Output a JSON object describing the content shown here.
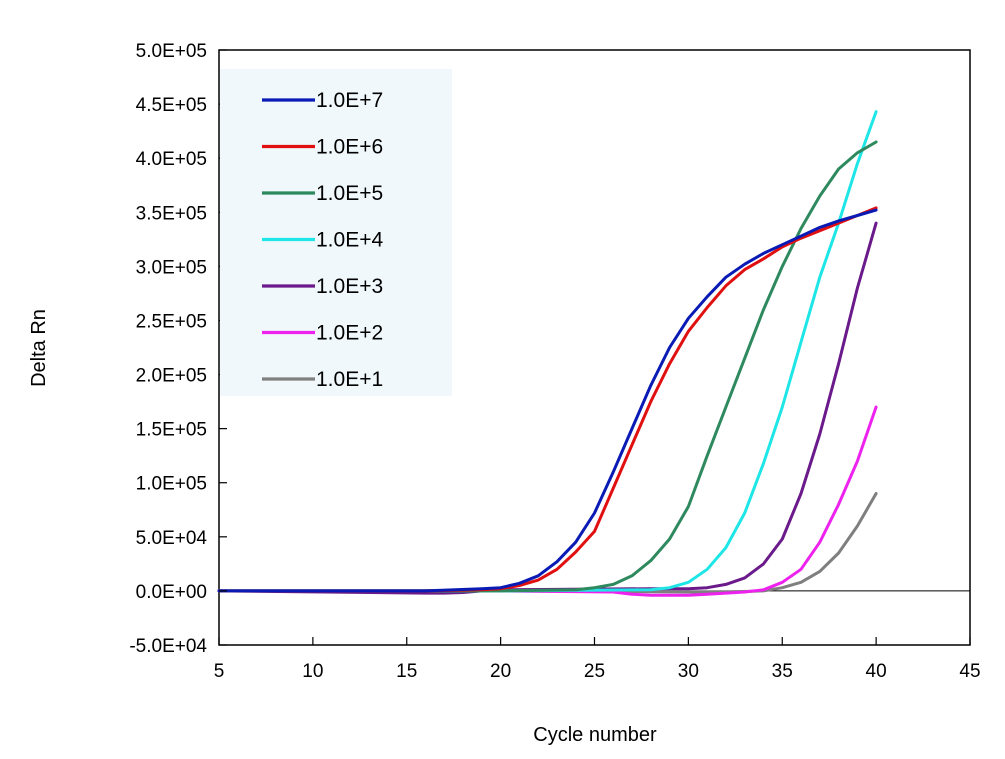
{
  "chart_data": {
    "type": "line",
    "title": "",
    "xlabel": "Cycle number",
    "ylabel": "Delta Rn",
    "xlim": [
      5,
      45
    ],
    "ylim": [
      -50000,
      500000
    ],
    "x_ticks": [
      5,
      10,
      15,
      20,
      25,
      30,
      35,
      40,
      45
    ],
    "x_tick_labels": [
      "5",
      "10",
      "15",
      "20",
      "25",
      "30",
      "35",
      "40",
      "45"
    ],
    "y_ticks": [
      -50000,
      0,
      50000,
      100000,
      150000,
      200000,
      250000,
      300000,
      350000,
      400000,
      450000,
      500000
    ],
    "y_tick_labels": [
      "-5.0E+04",
      "0.0E+00",
      "5.0E+04",
      "1.0E+05",
      "1.5E+05",
      "2.0E+05",
      "2.5E+05",
      "3.0E+05",
      "3.5E+05",
      "4.0E+05",
      "4.5E+05",
      "5.0E+05"
    ],
    "grid": false,
    "legend_position": "top-left",
    "legend_background": "#f0f8fb",
    "series": [
      {
        "name": "1.0E+7",
        "color": "#0a1ab4",
        "x": [
          5,
          16,
          19,
          20,
          21,
          22,
          23,
          24,
          25,
          26,
          27,
          28,
          29,
          30,
          31,
          32,
          33,
          34,
          35,
          36,
          37,
          38,
          39,
          40
        ],
        "y": [
          0,
          0,
          2000,
          3000,
          7000,
          14000,
          27000,
          45000,
          72000,
          110000,
          150000,
          190000,
          225000,
          252000,
          272000,
          290000,
          302000,
          312000,
          320000,
          328000,
          336000,
          342000,
          347000,
          352000
        ]
      },
      {
        "name": "1.0E+6",
        "color": "#e01010",
        "x": [
          5,
          16,
          19,
          20,
          21,
          22,
          23,
          24,
          25,
          26,
          27,
          28,
          29,
          30,
          31,
          32,
          33,
          34,
          35,
          36,
          37,
          38,
          39,
          40
        ],
        "y": [
          0,
          0,
          1000,
          2000,
          5000,
          10000,
          20000,
          36000,
          55000,
          95000,
          135000,
          175000,
          210000,
          240000,
          262000,
          282000,
          297000,
          307000,
          318000,
          326000,
          333000,
          340000,
          347000,
          354000
        ]
      },
      {
        "name": "1.0E+5",
        "color": "#2e8a5e",
        "x": [
          5,
          20,
          24,
          25,
          26,
          27,
          28,
          29,
          30,
          31,
          32,
          33,
          34,
          35,
          36,
          37,
          38,
          39,
          40
        ],
        "y": [
          0,
          0,
          1000,
          3000,
          6000,
          14000,
          28000,
          48000,
          78000,
          125000,
          170000,
          215000,
          260000,
          300000,
          335000,
          365000,
          390000,
          405000,
          415000
        ]
      },
      {
        "name": "1.0E+4",
        "color": "#1ee6e6",
        "x": [
          5,
          20,
          28,
          29,
          30,
          31,
          32,
          33,
          34,
          35,
          36,
          37,
          38,
          39,
          40
        ],
        "y": [
          0,
          0,
          1000,
          3000,
          8000,
          20000,
          40000,
          72000,
          118000,
          170000,
          230000,
          290000,
          340000,
          395000,
          443000
        ]
      },
      {
        "name": "1.0E+3",
        "color": "#6a1a8a",
        "x": [
          5,
          16,
          17,
          18,
          19,
          20,
          28,
          30,
          31,
          32,
          33,
          34,
          35,
          36,
          37,
          38,
          39,
          40
        ],
        "y": [
          0,
          -2000,
          -2000,
          -1500,
          0,
          1000,
          2000,
          2000,
          3000,
          6000,
          12000,
          25000,
          48000,
          90000,
          145000,
          210000,
          280000,
          340000
        ]
      },
      {
        "name": "1.0E+2",
        "color": "#ee22ee",
        "x": [
          5,
          20,
          26,
          27,
          28,
          29,
          30,
          31,
          32,
          33,
          34,
          35,
          36,
          37,
          38,
          39,
          40
        ],
        "y": [
          0,
          0,
          -1000,
          -3000,
          -4000,
          -4000,
          -4000,
          -3000,
          -2000,
          -1000,
          1000,
          8000,
          20000,
          45000,
          80000,
          120000,
          170000
        ]
      },
      {
        "name": "1.0E+1",
        "color": "#7f7f7f",
        "x": [
          5,
          20,
          30,
          31,
          32,
          33,
          34,
          35,
          36,
          37,
          38,
          39,
          40
        ],
        "y": [
          0,
          0,
          -1000,
          -1000,
          -1000,
          -500,
          0,
          3000,
          8000,
          18000,
          35000,
          60000,
          90000
        ]
      }
    ]
  }
}
